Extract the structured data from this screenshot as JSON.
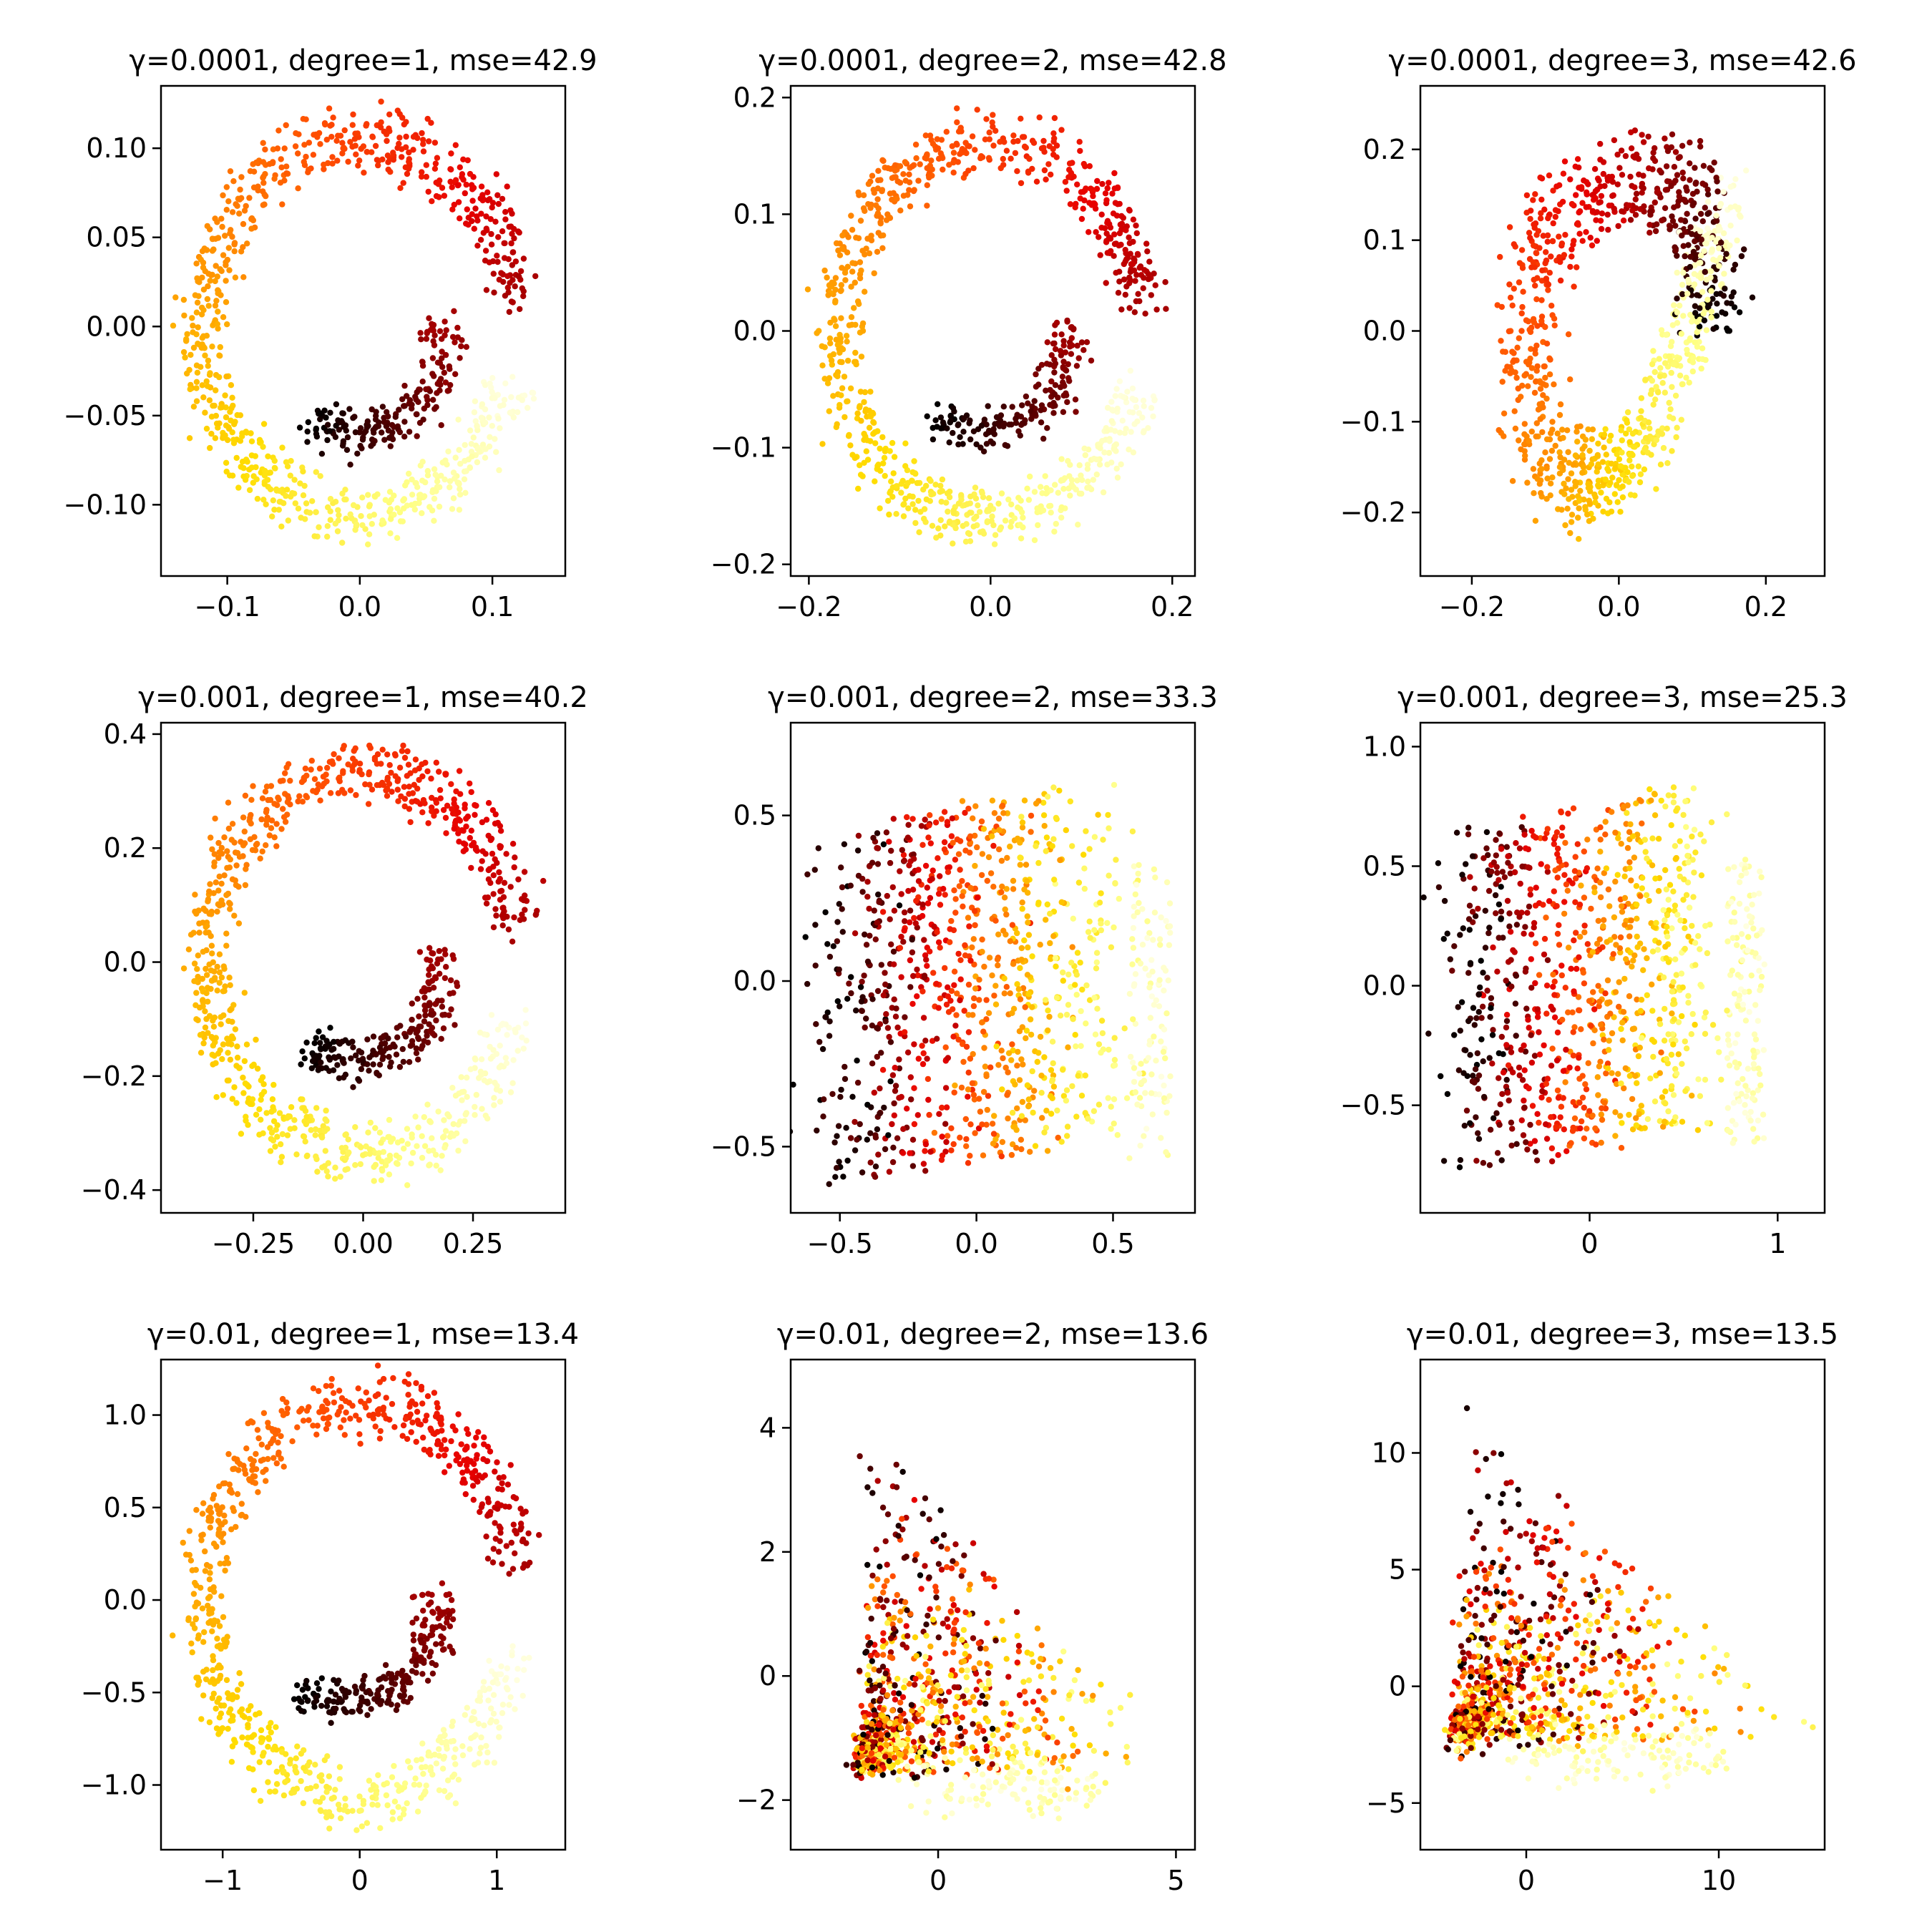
{
  "chart_data": [
    {
      "type": "scatter",
      "title": "γ=0.0001, degree=1, mse=42.9",
      "gamma": "0.0001",
      "degree": 1,
      "mse": 42.9,
      "xlim": [
        -0.15,
        0.155
      ],
      "ylim": [
        -0.14,
        0.135
      ],
      "xticks": [
        {
          "v": -0.1,
          "label": "−0.1"
        },
        {
          "v": 0,
          "label": "0.0"
        },
        {
          "v": 0.1,
          "label": "0.1"
        }
      ],
      "yticks": [
        {
          "v": -0.1,
          "label": "−0.10"
        },
        {
          "v": -0.05,
          "label": "−0.05"
        },
        {
          "v": 0,
          "label": "0.00"
        },
        {
          "v": 0.05,
          "label": "0.05"
        },
        {
          "v": 0.1,
          "label": "0.10"
        }
      ],
      "shape": {
        "kind": "ring",
        "cx": 0,
        "cy": 0,
        "rx": 0.133,
        "ry": 0.118,
        "inner_cx": 0.01,
        "inner_cy": -0.035,
        "inner_r": 0.07,
        "jitter": 0.012
      }
    },
    {
      "type": "scatter",
      "title": "γ=0.0001, degree=2, mse=42.8",
      "gamma": "0.0001",
      "degree": 2,
      "mse": 42.8,
      "xlim": [
        -0.22,
        0.225
      ],
      "ylim": [
        -0.21,
        0.21
      ],
      "xticks": [
        {
          "v": -0.2,
          "label": "−0.2"
        },
        {
          "v": 0,
          "label": "0.0"
        },
        {
          "v": 0.2,
          "label": "0.2"
        }
      ],
      "yticks": [
        {
          "v": -0.2,
          "label": "−0.2"
        },
        {
          "v": -0.1,
          "label": "−0.1"
        },
        {
          "v": 0,
          "label": "0.0"
        },
        {
          "v": 0.1,
          "label": "0.1"
        },
        {
          "v": 0.2,
          "label": "0.2"
        }
      ],
      "shape": {
        "kind": "ring",
        "cx": 0,
        "cy": 0,
        "rx": 0.19,
        "ry": 0.18,
        "inner_cx": 0.01,
        "inner_cy": -0.05,
        "inner_r": 0.1,
        "jitter": 0.018
      }
    },
    {
      "type": "scatter",
      "title": "γ=0.0001, degree=3, mse=42.6",
      "gamma": "0.0001",
      "degree": 3,
      "mse": 42.6,
      "xlim": [
        -0.27,
        0.28
      ],
      "ylim": [
        -0.27,
        0.27
      ],
      "xticks": [
        {
          "v": -0.2,
          "label": "−0.2"
        },
        {
          "v": 0,
          "label": "0.0"
        },
        {
          "v": 0.2,
          "label": "0.2"
        }
      ],
      "yticks": [
        {
          "v": -0.2,
          "label": "−0.2"
        },
        {
          "v": -0.1,
          "label": "−0.1"
        },
        {
          "v": 0,
          "label": "0.0"
        },
        {
          "v": 0.1,
          "label": "0.1"
        },
        {
          "v": 0.2,
          "label": "0.2"
        }
      ],
      "shape": {
        "kind": "twisted",
        "cx": 0,
        "cy": 0,
        "rx": 0.2,
        "ry": 0.22,
        "jitter": 0.03
      }
    },
    {
      "type": "scatter",
      "title": "γ=0.001, degree=1, mse=40.2",
      "gamma": "0.001",
      "degree": 1,
      "mse": 40.2,
      "xlim": [
        -0.46,
        0.46
      ],
      "ylim": [
        -0.44,
        0.42
      ],
      "xticks": [
        {
          "v": -0.25,
          "label": "−0.25"
        },
        {
          "v": 0,
          "label": "0.00"
        },
        {
          "v": 0.25,
          "label": "0.25"
        }
      ],
      "yticks": [
        {
          "v": -0.4,
          "label": "−0.4"
        },
        {
          "v": -0.2,
          "label": "−0.2"
        },
        {
          "v": 0,
          "label": "0.0"
        },
        {
          "v": 0.2,
          "label": "0.2"
        },
        {
          "v": 0.4,
          "label": "0.4"
        }
      ],
      "shape": {
        "kind": "ring",
        "cx": 0,
        "cy": 0,
        "rx": 0.4,
        "ry": 0.38,
        "inner_cx": 0.02,
        "inner_cy": -0.1,
        "inner_r": 0.21,
        "jitter": 0.035
      }
    },
    {
      "type": "scatter",
      "title": "γ=0.001, degree=2, mse=33.3",
      "gamma": "0.001",
      "degree": 2,
      "mse": 33.3,
      "xlim": [
        -0.68,
        0.8
      ],
      "ylim": [
        -0.7,
        0.78
      ],
      "xticks": [
        {
          "v": -0.5,
          "label": "−0.5"
        },
        {
          "v": 0,
          "label": "0.0"
        },
        {
          "v": 0.5,
          "label": "0.5"
        }
      ],
      "yticks": [
        {
          "v": -0.5,
          "label": "−0.5"
        },
        {
          "v": 0,
          "label": "0.0"
        },
        {
          "v": 0.5,
          "label": "0.5"
        }
      ],
      "shape": {
        "kind": "blob",
        "cx": 0.05,
        "cy": 0,
        "rx": 0.6,
        "ry": 0.6,
        "jitter": 0.08
      }
    },
    {
      "type": "scatter",
      "title": "γ=0.001, degree=3, mse=25.3",
      "gamma": "0.001",
      "degree": 3,
      "mse": 25.3,
      "xlim": [
        -0.9,
        1.25
      ],
      "ylim": [
        -0.95,
        1.1
      ],
      "xticks": [
        {
          "v": 0,
          "label": "0"
        },
        {
          "v": 1,
          "label": "1"
        }
      ],
      "yticks": [
        {
          "v": -0.5,
          "label": "−0.5"
        },
        {
          "v": 0,
          "label": "0.0"
        },
        {
          "v": 0.5,
          "label": "0.5"
        },
        {
          "v": 1,
          "label": "1.0"
        }
      ],
      "shape": {
        "kind": "blob",
        "cx": 0.05,
        "cy": 0.05,
        "rx": 0.8,
        "ry": 0.8,
        "jitter": 0.11
      }
    },
    {
      "type": "scatter",
      "title": "γ=0.01, degree=1, mse=13.4",
      "gamma": "0.01",
      "degree": 1,
      "mse": 13.4,
      "xlim": [
        -1.45,
        1.5
      ],
      "ylim": [
        -1.35,
        1.3
      ],
      "xticks": [
        {
          "v": -1,
          "label": "−1"
        },
        {
          "v": 0,
          "label": "0"
        },
        {
          "v": 1,
          "label": "1"
        }
      ],
      "yticks": [
        {
          "v": -1,
          "label": "−1.0"
        },
        {
          "v": -0.5,
          "label": "−0.5"
        },
        {
          "v": 0,
          "label": "0.0"
        },
        {
          "v": 0.5,
          "label": "0.5"
        },
        {
          "v": 1,
          "label": "1.0"
        }
      ],
      "shape": {
        "kind": "ring",
        "cx": 0,
        "cy": 0,
        "rx": 1.28,
        "ry": 1.2,
        "inner_cx": 0.05,
        "inner_cy": -0.32,
        "inner_r": 0.66,
        "jitter": 0.1
      }
    },
    {
      "type": "scatter",
      "title": "γ=0.01, degree=2, mse=13.6",
      "gamma": "0.01",
      "degree": 2,
      "mse": 13.6,
      "xlim": [
        -3.1,
        5.4
      ],
      "ylim": [
        -2.8,
        5.1
      ],
      "xticks": [
        {
          "v": 0,
          "label": "0"
        },
        {
          "v": 5,
          "label": "5"
        }
      ],
      "yticks": [
        {
          "v": -2,
          "label": "−2"
        },
        {
          "v": 0,
          "label": "0"
        },
        {
          "v": 2,
          "label": "2"
        },
        {
          "v": 4,
          "label": "4"
        }
      ],
      "shape": {
        "kind": "fan",
        "cx": -1.6,
        "cy": -1.4,
        "rx": 5,
        "ry": 4.8,
        "jitter": 0.25
      }
    },
    {
      "type": "scatter",
      "title": "γ=0.01, degree=3, mse=13.5",
      "gamma": "0.01",
      "degree": 3,
      "mse": 13.5,
      "xlim": [
        -5.5,
        15.5
      ],
      "ylim": [
        -7,
        14
      ],
      "xticks": [
        {
          "v": 0,
          "label": "0"
        },
        {
          "v": 10,
          "label": "10"
        }
      ],
      "yticks": [
        {
          "v": -5,
          "label": "−5"
        },
        {
          "v": 0,
          "label": "0"
        },
        {
          "v": 5,
          "label": "5"
        },
        {
          "v": 10,
          "label": "10"
        }
      ],
      "shape": {
        "kind": "fan",
        "cx": -3.5,
        "cy": -2,
        "rx": 14,
        "ry": 12,
        "jitter": 0.7
      }
    }
  ],
  "colormap": {
    "name": "hot",
    "stops": [
      "#000000",
      "#7a0000",
      "#e60000",
      "#ff4d00",
      "#ff9900",
      "#ffdd00",
      "#ffff80",
      "#ffffe0"
    ]
  },
  "points_per_panel": 1000
}
